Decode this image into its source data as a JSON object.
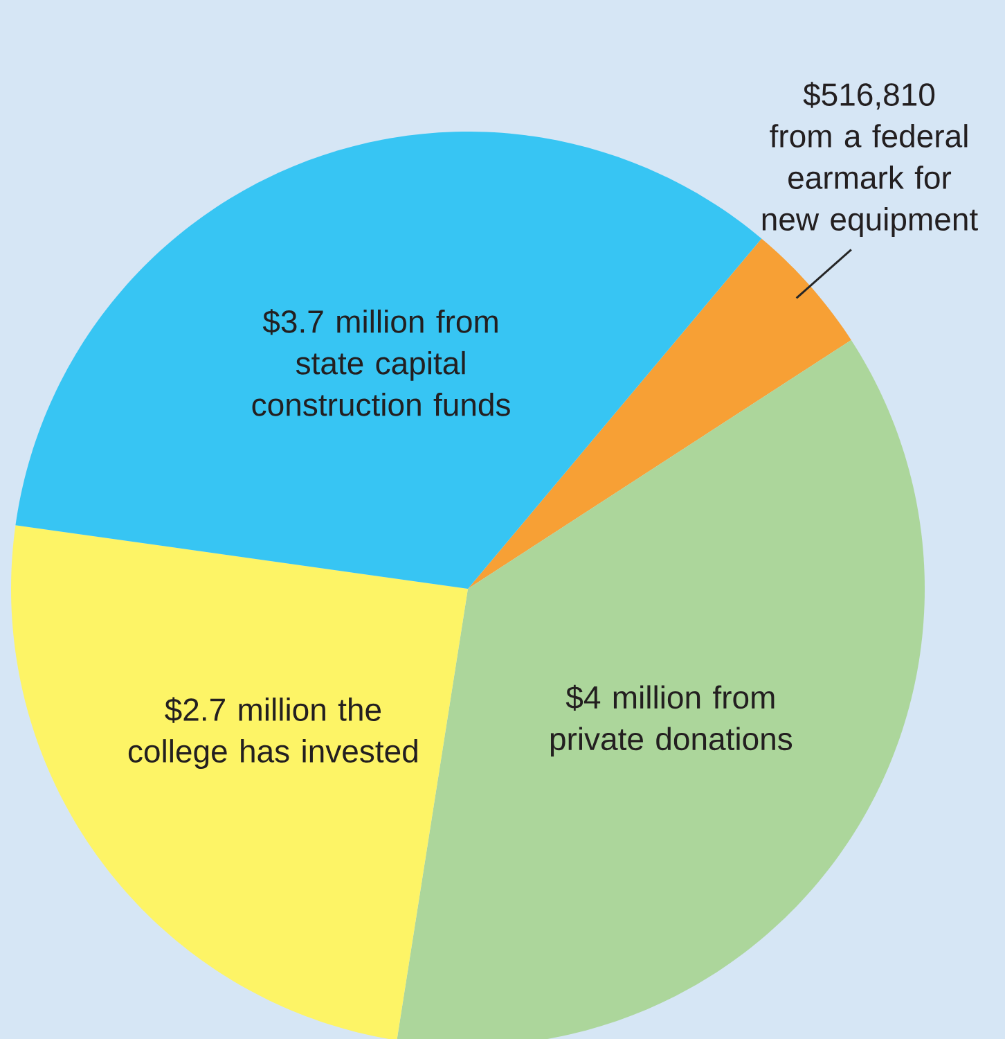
{
  "chart_data": {
    "type": "pie",
    "categories": [
      "$516,810 from a federal earmark for new equipment",
      "$4 million from private donations",
      "$2.7 million the college has invested",
      "$3.7 million from state capital construction funds"
    ],
    "values": [
      516810,
      4000000,
      2700000,
      3700000
    ],
    "colors": [
      "#f7a035",
      "#acd69b",
      "#fdf466",
      "#37c5f3"
    ]
  }
}
